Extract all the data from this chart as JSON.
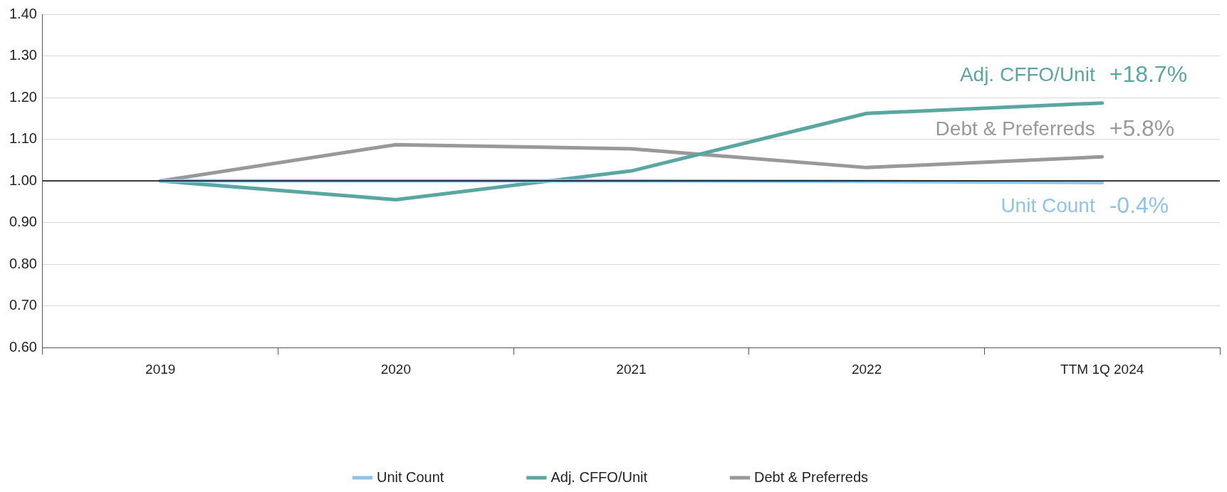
{
  "chart_data": {
    "type": "line",
    "categories": [
      "2019",
      "2020",
      "2021",
      "2022",
      "TTM 1Q 2024"
    ],
    "series": [
      {
        "name": "Unit Count",
        "color": "#8ec4e8",
        "values": [
          1.0,
          1.0,
          1.0,
          0.999,
          0.996
        ]
      },
      {
        "name": "Adj. CFFO/Unit",
        "color": "#5ba6a0",
        "values": [
          1.0,
          0.955,
          1.024,
          1.162,
          1.187
        ]
      },
      {
        "name": "Debt & Preferreds",
        "color": "#999999",
        "values": [
          1.0,
          1.087,
          1.077,
          1.032,
          1.058
        ]
      }
    ],
    "ylim": [
      0.6,
      1.4
    ],
    "yticks": [
      {
        "value": 0.6,
        "label": "0.60"
      },
      {
        "value": 0.7,
        "label": "0.70"
      },
      {
        "value": 0.8,
        "label": "0.80"
      },
      {
        "value": 0.9,
        "label": "0.90"
      },
      {
        "value": 1.0,
        "label": "1.00"
      },
      {
        "value": 1.1,
        "label": "1.10"
      },
      {
        "value": 1.2,
        "label": "1.20"
      },
      {
        "value": 1.3,
        "label": "1.30"
      },
      {
        "value": 1.4,
        "label": "1.40"
      }
    ],
    "grid": "y",
    "legend": "bottom",
    "marker": "none",
    "line_style": "solid",
    "ref_lines": [
      {
        "axis": "y",
        "value": 1.0,
        "color": "#000000"
      }
    ],
    "annotations": [
      "Unit Count",
      "-0.4%",
      "Adj. CFFO/Unit",
      "+18.7%",
      "Debt & Preferreds",
      "+5.8%"
    ]
  }
}
